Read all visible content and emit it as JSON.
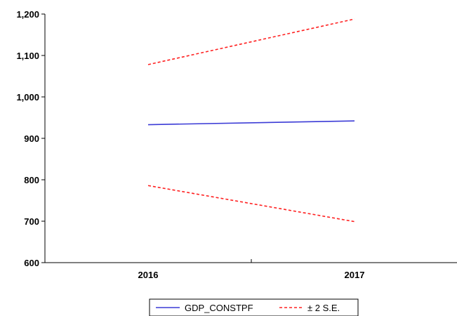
{
  "chart_data": {
    "type": "line",
    "title": "",
    "xlabel": "",
    "ylabel": "",
    "categories": [
      "2016",
      "2017"
    ],
    "ylim": [
      600,
      1200
    ],
    "yticks": [
      600,
      700,
      800,
      900,
      1000,
      1100,
      1200
    ],
    "ytick_labels": [
      "600",
      "700",
      "800",
      "900",
      "1,000",
      "1,100",
      "1,200"
    ],
    "grid": false,
    "legend_position": "bottom-center",
    "series": [
      {
        "name": "GDP_CONSTPF",
        "values": [
          933,
          942
        ],
        "color": "#3b3bd6",
        "style": "solid"
      },
      {
        "name": "± 2 S.E.",
        "values": [
          1078,
          1188
        ],
        "color": "#ff2020",
        "style": "dashed"
      },
      {
        "name": "± 2 S.E.",
        "values": [
          786,
          699
        ],
        "color": "#ff2020",
        "style": "dashed"
      }
    ],
    "legend": [
      {
        "label": "GDP_CONSTPF",
        "color": "#3b3bd6",
        "style": "solid"
      },
      {
        "label": "± 2 S.E.",
        "color": "#ff2020",
        "style": "dashed"
      }
    ]
  }
}
